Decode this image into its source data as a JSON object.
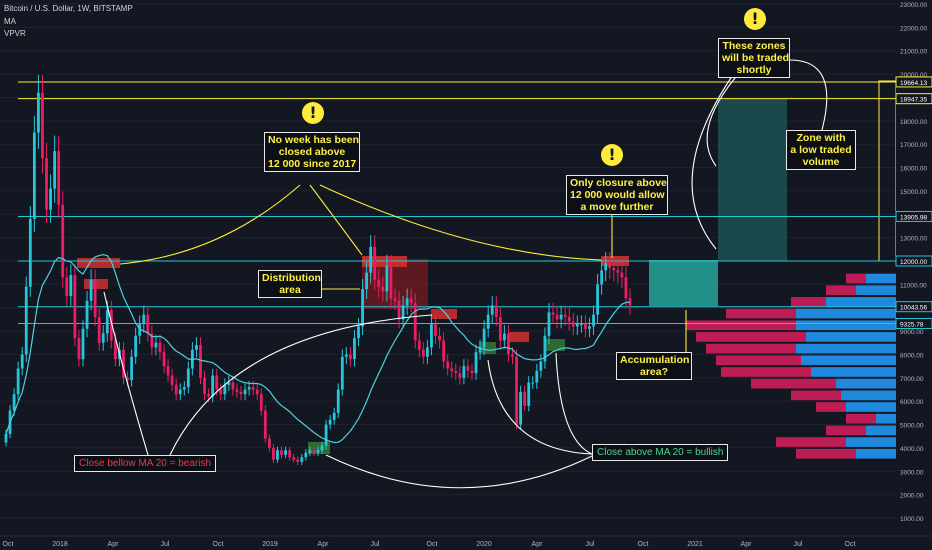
{
  "header": {
    "symbol": "Bitcoin / U.S. Dollar, 1W, BITSTAMP",
    "indicator_ma": "MA",
    "indicator_vpvr": "VPVR"
  },
  "colors": {
    "background": "#131722",
    "up_candle": "#26c6da",
    "down_candle": "#e91e63",
    "ma_line": "#4dd0e1",
    "yellow_level": "#ffeb3b",
    "cyan_level": "#26c6da",
    "resistance_box": "#d32f2f",
    "accumulation_box": "#26a69a",
    "vp_sell": "#e91e63",
    "vp_buy": "#2196f3"
  },
  "annotations": {
    "no_week": [
      "No week has been",
      "closed above",
      "12 000 since 2017"
    ],
    "only_closure": [
      "Only closure above",
      "12 000 would allow",
      "a move further"
    ],
    "zones_traded": [
      "These zones",
      "will be traded",
      "shortly"
    ],
    "low_volume": [
      "Zone with",
      "a low traded",
      "volume"
    ],
    "distribution": [
      "Distribution",
      "area"
    ],
    "accumulation": [
      "Accumulation",
      "area?"
    ],
    "bearish": "Close bellow MA 20 = bearish",
    "bullish": "Close above MA 20 = bullish",
    "warning_glyph": "!"
  },
  "chart_data": {
    "type": "candlestick",
    "title": "Bitcoin / U.S. Dollar, 1W, BITSTAMP",
    "y_axis": {
      "ylim": [
        0,
        23000
      ],
      "ticks": [
        1000,
        2000,
        3000,
        4000,
        5000,
        6000,
        7000,
        8000,
        9000,
        10000,
        11000,
        12000,
        13000,
        14000,
        15000,
        16000,
        17000,
        18000,
        19000,
        20000,
        21000,
        22000,
        23000
      ],
      "tick_labels": [
        "1000.00",
        "2000.00",
        "3000.00",
        "4000.00",
        "5000.00",
        "6000.00",
        "7000.00",
        "8000.00",
        "9000.00",
        "10000.00",
        "11000.00",
        "12000.00",
        "13000.00",
        "14000.00",
        "15000.00",
        "16000.00",
        "17000.00",
        "18000.00",
        "19000.00",
        "20000.00",
        "21000.00",
        "22000.00",
        "23000.00"
      ]
    },
    "x_axis": {
      "tick_labels": [
        "Oct",
        "2018",
        "Apr",
        "Jul",
        "Oct",
        "2019",
        "Apr",
        "Jul",
        "Oct",
        "2020",
        "Apr",
        "Jul",
        "Oct",
        "2021",
        "Apr",
        "Jul",
        "Oct"
      ]
    },
    "price_labels": [
      {
        "value": 19664.13,
        "label": "19664.13",
        "color": "#ffeb3b"
      },
      {
        "value": 18947.35,
        "label": "18947.35",
        "color": "#ffeb3b"
      },
      {
        "value": 13905.98,
        "label": "13905.98",
        "color": "#26c6da"
      },
      {
        "value": 12000.0,
        "label": "12000.00",
        "color": "#26c6da"
      },
      {
        "value": 10043.56,
        "label": "10043.56",
        "color": "#26c6da"
      },
      {
        "value": 9325.78,
        "label": "9325.78",
        "color": "#26c6da"
      }
    ],
    "weekly_close": [
      4600,
      5600,
      6300,
      7400,
      8000,
      10900,
      13800,
      17500,
      19200,
      16400,
      14200,
      15100,
      16700,
      14400,
      11300,
      10500,
      11400,
      8700,
      7800,
      9100,
      10300,
      11200,
      9600,
      8500,
      8900,
      9900,
      8600,
      7800,
      8200,
      7000,
      6900,
      7900,
      8800,
      9300,
      9700,
      8900,
      8300,
      8500,
      8100,
      7500,
      7100,
      6700,
      6300,
      6500,
      6600,
      7400,
      8200,
      8400,
      7000,
      6300,
      6200,
      7100,
      6500,
      6300,
      6700,
      6800,
      6500,
      6400,
      6300,
      6500,
      6600,
      6500,
      6300,
      5600,
      4400,
      4000,
      3500,
      3900,
      3700,
      3900,
      3600,
      3500,
      3400,
      3600,
      3800,
      3900,
      3800,
      3900,
      4100,
      5000,
      5200,
      5500,
      6500,
      7900,
      8000,
      7800,
      8700,
      9200,
      10800,
      11500,
      12600,
      11200,
      10900,
      10700,
      11800,
      10400,
      10300,
      9500,
      10100,
      10400,
      10200,
      8600,
      8200,
      7900,
      8300,
      9300,
      8800,
      8600,
      7700,
      7400,
      7300,
      7200,
      7000,
      7500,
      7300,
      7200,
      8100,
      8300,
      9100,
      9700,
      10100,
      9600,
      8600,
      8900,
      8000,
      7900,
      5000,
      6400,
      5800,
      6800,
      6800,
      7300,
      7700,
      8800,
      9800,
      9700,
      9500,
      9700,
      9600,
      9400,
      9200,
      9300,
      9300,
      9100,
      9200,
      9700,
      11000,
      11600,
      11900,
      11700,
      11600,
      11500,
      11300,
      10400,
      10100
    ]
  }
}
